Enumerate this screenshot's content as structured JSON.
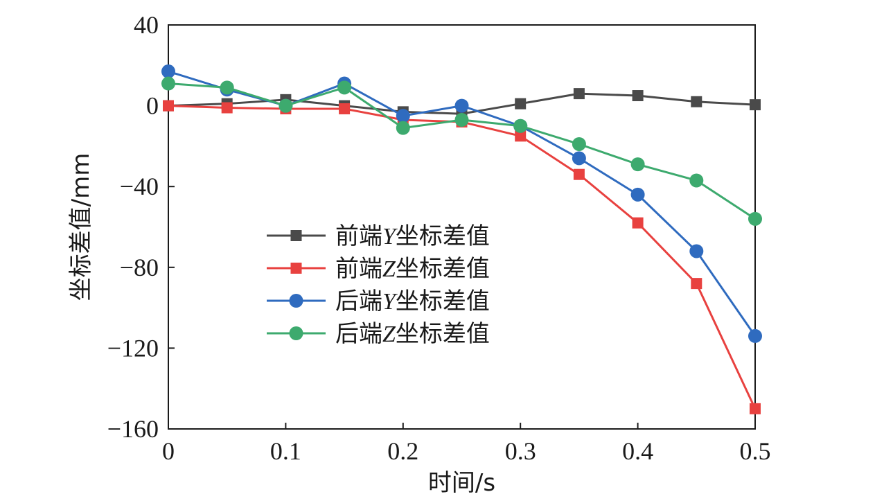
{
  "chart_data": {
    "type": "line",
    "xlabel": "时间/s",
    "ylabel": "坐标差值/mm",
    "xlim": [
      0,
      0.5
    ],
    "ylim": [
      -160,
      40
    ],
    "x_ticks": [
      "0",
      "0.1",
      "0.2",
      "0.3",
      "0.4",
      "0.5"
    ],
    "x_tick_values": [
      0,
      0.1,
      0.2,
      0.3,
      0.4,
      0.5
    ],
    "y_ticks": [
      "40",
      "0",
      "−40",
      "−80",
      "−120",
      "−160"
    ],
    "y_tick_values": [
      40,
      0,
      -40,
      -80,
      -120,
      -160
    ],
    "grid": false,
    "legend_position": "center-left",
    "x": [
      0,
      0.05,
      0.1,
      0.15,
      0.2,
      0.25,
      0.3,
      0.35,
      0.4,
      0.45,
      0.5
    ],
    "series": [
      {
        "name": "前端Y坐标差值",
        "legend_prefix": "前端",
        "legend_italic": "Y",
        "legend_suffix": "坐标差值",
        "marker": "square",
        "color": "#4a4a4a",
        "values": [
          0,
          1,
          3,
          0,
          -3,
          -4,
          1,
          6,
          5,
          2,
          0.5
        ]
      },
      {
        "name": "前端Z坐标差值",
        "legend_prefix": "前端",
        "legend_italic": "Z",
        "legend_suffix": "坐标差值",
        "marker": "square",
        "color": "#e8413f",
        "values": [
          0,
          -1,
          -1.5,
          -1.5,
          -7,
          -8,
          -15,
          -34,
          -58,
          -88,
          -150
        ]
      },
      {
        "name": "后端Y坐标差值",
        "legend_prefix": "后端",
        "legend_italic": "Y",
        "legend_suffix": "坐标差值",
        "marker": "circle",
        "color": "#2f6bbf",
        "values": [
          17,
          8,
          0,
          11,
          -5,
          0,
          -10,
          -26,
          -44,
          -72,
          -114
        ]
      },
      {
        "name": "后端Z坐标差值",
        "legend_prefix": "后端",
        "legend_italic": "Z",
        "legend_suffix": "坐标差值",
        "marker": "circle",
        "color": "#3daa6e",
        "values": [
          11,
          9,
          0,
          9,
          -11,
          -7,
          -10,
          -19,
          -29,
          -37,
          -56
        ]
      }
    ]
  }
}
